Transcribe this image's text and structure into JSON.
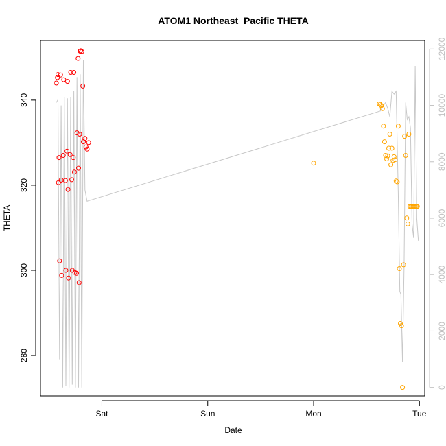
{
  "chart_data": {
    "type": "scatter",
    "title": "ATOM1 Northeast_Pacific THETA",
    "xlabel": "Date",
    "ylabel": "THETA",
    "x_ticks": [
      "Sat",
      "Sun",
      "Mon",
      "Tue"
    ],
    "x_tick_values": [
      1.0,
      2.0,
      3.0,
      4.0
    ],
    "xlim": [
      0.42,
      4.05
    ],
    "ylim": [
      270.5,
      354.0
    ],
    "y_ticks": [
      280,
      300,
      320,
      340
    ],
    "y2lim": [
      -300,
      12300
    ],
    "y2_ticks": [
      0,
      2000,
      4000,
      6000,
      8000,
      10000,
      12000
    ],
    "colors": {
      "series1": "#ff0000",
      "series2": "#ffa500",
      "depth": "#c8c8c8",
      "right_axis": "#c0c0c0"
    },
    "series": [
      {
        "color": "#ff0000",
        "x": [
          0.57,
          0.58,
          0.585,
          0.59,
          0.595,
          0.6,
          0.61,
          0.615,
          0.62,
          0.635,
          0.64,
          0.655,
          0.66,
          0.67,
          0.675,
          0.68,
          0.685,
          0.7,
          0.705,
          0.715,
          0.72,
          0.73,
          0.735,
          0.74,
          0.745,
          0.76,
          0.765,
          0.775,
          0.78,
          0.785,
          0.79,
          0.795,
          0.8,
          0.81,
          0.82,
          0.825,
          0.84,
          0.85,
          0.86,
          0.875
        ],
        "y": [
          344.0,
          345.3,
          346.0,
          320.6,
          326.5,
          302.2,
          345.9,
          321.2,
          298.8,
          327.0,
          344.8,
          321.1,
          300.0,
          328.0,
          344.4,
          319.0,
          298.2,
          327.2,
          346.5,
          321.3,
          300.0,
          326.5,
          346.5,
          323.1,
          299.5,
          299.3,
          332.3,
          349.8,
          324.0,
          297.1,
          332.0,
          351.5,
          351.6,
          351.4,
          343.3,
          330.2,
          331.0,
          329.0,
          328.5,
          330.0
        ]
      },
      {
        "color": "#ffa500",
        "x": [
          3.0,
          3.62,
          3.63,
          3.64,
          3.65,
          3.66,
          3.67,
          3.68,
          3.69,
          3.7,
          3.71,
          3.72,
          3.73,
          3.74,
          3.75,
          3.76,
          3.77,
          3.78,
          3.79,
          3.8,
          3.81,
          3.82,
          3.83,
          3.84,
          3.85,
          3.86,
          3.87,
          3.88,
          3.89,
          3.9,
          3.91,
          3.92,
          3.93,
          3.94,
          3.95,
          3.96,
          3.97,
          3.98
        ],
        "y": [
          325.2,
          339.1,
          339.0,
          338.7,
          338.0,
          333.9,
          330.2,
          327.0,
          326.2,
          326.9,
          328.7,
          332.0,
          324.8,
          328.7,
          325.8,
          326.7,
          326.0,
          321.0,
          320.8,
          333.9,
          300.4,
          287.5,
          287.0,
          272.5,
          301.3,
          331.5,
          327.0,
          312.3,
          310.9,
          332.0,
          315.0,
          315.0,
          315.0,
          315.0,
          315.0,
          315.0,
          315.0,
          315.0
        ]
      }
    ],
    "depth_series": {
      "color": "#c8c8c8",
      "x": [
        0.57,
        0.585,
        0.6,
        0.615,
        0.63,
        0.645,
        0.66,
        0.675,
        0.69,
        0.705,
        0.72,
        0.735,
        0.75,
        0.765,
        0.78,
        0.795,
        0.81,
        0.825,
        0.84,
        0.86,
        3.63,
        3.66,
        3.68,
        3.7,
        3.72,
        3.74,
        3.76,
        3.78,
        3.8,
        3.815,
        3.825,
        3.84,
        3.855,
        3.87,
        3.885,
        3.9,
        3.915,
        3.93,
        3.945,
        3.96,
        3.975,
        3.99
      ],
      "y": [
        10100,
        10200,
        1000,
        10000,
        0,
        10300,
        50,
        10250,
        0,
        10300,
        100,
        10500,
        0,
        11000,
        0,
        11100,
        0,
        11600,
        7000,
        6600,
        9800,
        10000,
        10100,
        9900,
        9600,
        10500,
        10400,
        10500,
        6900,
        3400,
        3300,
        900,
        4300,
        10100,
        9500,
        9600,
        9200,
        5800,
        5300,
        11400,
        6000,
        5200
      ]
    }
  }
}
